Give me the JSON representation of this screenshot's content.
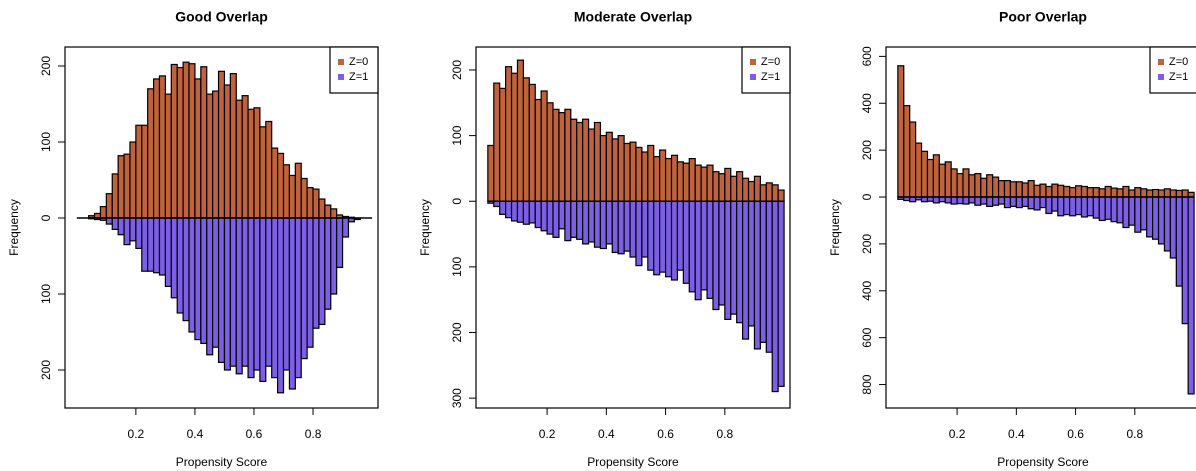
{
  "chart_data": [
    {
      "type": "histogram",
      "title": "Good Overlap",
      "xlabel": "Propensity Score",
      "ylabel": "Frequency",
      "bins": [
        0,
        0.02,
        0.04,
        0.06,
        0.08,
        0.1,
        0.12,
        0.14,
        0.16,
        0.18,
        0.2,
        0.22,
        0.24,
        0.26,
        0.28,
        0.3,
        0.32,
        0.34,
        0.36,
        0.38,
        0.4,
        0.42,
        0.44,
        0.46,
        0.48,
        0.5,
        0.52,
        0.54,
        0.56,
        0.58,
        0.6,
        0.62,
        0.64,
        0.66,
        0.68,
        0.7,
        0.72,
        0.74,
        0.76,
        0.78,
        0.8,
        0.82,
        0.84,
        0.86,
        0.88,
        0.9,
        0.92,
        0.94,
        0.96,
        0.98,
        1
      ],
      "series": [
        {
          "name": "Z=0",
          "color": "#c0623e",
          "values": [
            0,
            0,
            3,
            6,
            15,
            32,
            58,
            82,
            84,
            100,
            122,
            122,
            170,
            183,
            187,
            163,
            202,
            198,
            205,
            203,
            183,
            199,
            163,
            167,
            193,
            175,
            190,
            155,
            161,
            143,
            145,
            120,
            127,
            92,
            85,
            70,
            56,
            72,
            52,
            40,
            38,
            25,
            17,
            12,
            4,
            2,
            1,
            0,
            0,
            0
          ]
        },
        {
          "name": "Z=1",
          "color": "#7c5fe6",
          "values": [
            0,
            0,
            -1,
            -2,
            -3,
            -8,
            -15,
            -22,
            -35,
            -30,
            -40,
            -70,
            -70,
            -72,
            -75,
            -90,
            -105,
            -125,
            -135,
            -150,
            -160,
            -165,
            -180,
            -170,
            -190,
            -200,
            -195,
            -205,
            -195,
            -210,
            -200,
            -215,
            -195,
            -210,
            -230,
            -200,
            -225,
            -210,
            -185,
            -170,
            -145,
            -140,
            -120,
            -100,
            -65,
            -25,
            -5,
            -2,
            0,
            0
          ]
        }
      ],
      "xlim": [
        -0.04,
        1.02
      ],
      "xticks": [
        0.2,
        0.4,
        0.6,
        0.8
      ],
      "ylim": [
        -250,
        225
      ],
      "yticks": [
        {
          "value": -200,
          "label": "200"
        },
        {
          "value": -100,
          "label": "100"
        },
        0,
        100,
        200
      ],
      "legend": "top-right"
    },
    {
      "type": "histogram",
      "title": "Moderate Overlap",
      "xlabel": "Propensity Score",
      "ylabel": "Frequency",
      "bins": [
        0,
        0.02,
        0.04,
        0.06,
        0.08,
        0.1,
        0.12,
        0.14,
        0.16,
        0.18,
        0.2,
        0.22,
        0.24,
        0.26,
        0.28,
        0.3,
        0.32,
        0.34,
        0.36,
        0.38,
        0.4,
        0.42,
        0.44,
        0.46,
        0.48,
        0.5,
        0.52,
        0.54,
        0.56,
        0.58,
        0.6,
        0.62,
        0.64,
        0.66,
        0.68,
        0.7,
        0.72,
        0.74,
        0.76,
        0.78,
        0.8,
        0.82,
        0.84,
        0.86,
        0.88,
        0.9,
        0.92,
        0.94,
        0.96,
        0.98,
        1
      ],
      "series": [
        {
          "name": "Z=0",
          "color": "#c0623e",
          "values": [
            85,
            180,
            172,
            205,
            195,
            215,
            188,
            178,
            155,
            168,
            150,
            140,
            135,
            140,
            125,
            120,
            125,
            110,
            120,
            100,
            105,
            95,
            100,
            88,
            90,
            82,
            75,
            85,
            68,
            78,
            65,
            70,
            60,
            58,
            65,
            55,
            52,
            55,
            45,
            42,
            50,
            38,
            45,
            35,
            30,
            38,
            25,
            28,
            25,
            17
          ]
        },
        {
          "name": "Z=1",
          "color": "#7c5fe6",
          "values": [
            -3,
            -8,
            -20,
            -25,
            -30,
            -32,
            -35,
            -33,
            -40,
            -45,
            -50,
            -55,
            -42,
            -60,
            -55,
            -58,
            -65,
            -62,
            -70,
            -72,
            -65,
            -78,
            -80,
            -76,
            -85,
            -98,
            -85,
            -105,
            -112,
            -108,
            -115,
            -120,
            -105,
            -125,
            -138,
            -150,
            -135,
            -148,
            -165,
            -158,
            -180,
            -172,
            -185,
            -210,
            -190,
            -225,
            -215,
            -230,
            -290,
            -282
          ]
        }
      ],
      "xlim": [
        -0.04,
        1.02
      ],
      "xticks": [
        0.2,
        0.4,
        0.6,
        0.8
      ],
      "ylim": [
        -315,
        235
      ],
      "yticks": [
        {
          "value": -300,
          "label": "300"
        },
        {
          "value": -200,
          "label": "200"
        },
        {
          "value": -100,
          "label": "100"
        },
        0,
        100,
        200
      ],
      "legend": "top-right"
    },
    {
      "type": "histogram",
      "title": "Poor Overlap",
      "xlabel": "Propensity Score",
      "ylabel": "Frequency",
      "bins": [
        0,
        0.02,
        0.04,
        0.06,
        0.08,
        0.1,
        0.12,
        0.14,
        0.16,
        0.18,
        0.2,
        0.22,
        0.24,
        0.26,
        0.28,
        0.3,
        0.32,
        0.34,
        0.36,
        0.38,
        0.4,
        0.42,
        0.44,
        0.46,
        0.48,
        0.5,
        0.52,
        0.54,
        0.56,
        0.58,
        0.6,
        0.62,
        0.64,
        0.66,
        0.68,
        0.7,
        0.72,
        0.74,
        0.76,
        0.78,
        0.8,
        0.82,
        0.84,
        0.86,
        0.88,
        0.9,
        0.92,
        0.94,
        0.96,
        0.98,
        1
      ],
      "series": [
        {
          "name": "Z=0",
          "color": "#c0623e",
          "values": [
            560,
            390,
            320,
            230,
            195,
            160,
            180,
            140,
            150,
            120,
            100,
            120,
            95,
            100,
            80,
            95,
            85,
            70,
            70,
            65,
            65,
            60,
            70,
            50,
            55,
            45,
            55,
            50,
            45,
            40,
            48,
            45,
            40,
            40,
            35,
            45,
            38,
            35,
            45,
            30,
            40,
            35,
            30,
            32,
            30,
            35,
            30,
            28,
            30,
            20
          ]
        },
        {
          "name": "Z=1",
          "color": "#7c5fe6",
          "values": [
            -10,
            -15,
            -20,
            -12,
            -20,
            -18,
            -25,
            -20,
            -25,
            -30,
            -28,
            -30,
            -25,
            -35,
            -30,
            -40,
            -35,
            -30,
            -45,
            -40,
            -45,
            -40,
            -50,
            -55,
            -45,
            -70,
            -60,
            -80,
            -75,
            -80,
            -75,
            -85,
            -80,
            -90,
            -100,
            -95,
            -105,
            -110,
            -130,
            -120,
            -150,
            -140,
            -170,
            -180,
            -200,
            -230,
            -260,
            -380,
            -540,
            -840
          ]
        }
      ],
      "xlim": [
        -0.04,
        1.02
      ],
      "xticks": [
        0.2,
        0.4,
        0.6,
        0.8
      ],
      "ylim": [
        -900,
        640
      ],
      "yticks": [
        {
          "value": -800,
          "label": "800"
        },
        {
          "value": -600,
          "label": "600"
        },
        {
          "value": -400,
          "label": "400"
        },
        {
          "value": -200,
          "label": "200"
        },
        0,
        200,
        400,
        600
      ],
      "legend": "top-right"
    }
  ]
}
